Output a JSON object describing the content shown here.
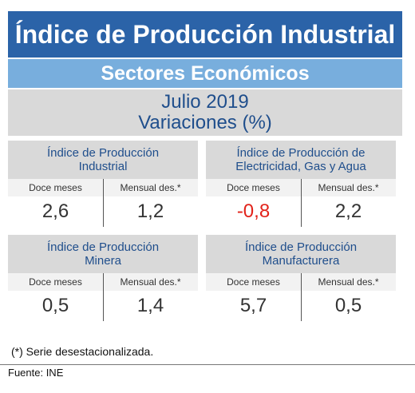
{
  "header": {
    "title": "Índice de Producción Industrial",
    "subtitle": "Sectores Económicos"
  },
  "period": {
    "line1": "Julio 2019",
    "line2": "Variaciones (%)"
  },
  "cards": [
    {
      "title_line1": "Índice de Producción",
      "title_line2": "Industrial",
      "col1_label": "Doce meses",
      "col2_label": "Mensual des.*",
      "col1_value": "2,6",
      "col2_value": "1,2"
    },
    {
      "title_line1": "Índice de Producción de",
      "title_line2": "Electricidad, Gas y Agua",
      "col1_label": "Doce meses",
      "col2_label": "Mensual des.*",
      "col1_value": "-0,8",
      "col2_value": "2,2"
    },
    {
      "title_line1": "Índice de Producción",
      "title_line2": "Minera",
      "col1_label": "Doce meses",
      "col2_label": "Mensual des.*",
      "col1_value": "0,5",
      "col2_value": "1,4"
    },
    {
      "title_line1": "Índice de Producción",
      "title_line2": "Manufacturera",
      "col1_label": "Doce meses",
      "col2_label": "Mensual des.*",
      "col1_value": "5,7",
      "col2_value": "0,5"
    }
  ],
  "footnote": "(*)   Serie desestacionalizada.",
  "source": "Fuente: INE",
  "colors": {
    "title_bg": "#2b63a8",
    "subtitle_bg": "#78aedd",
    "panel_bg": "#d9d9d9",
    "text_blue": "#1f4e8c",
    "negative": "#e2231a"
  }
}
